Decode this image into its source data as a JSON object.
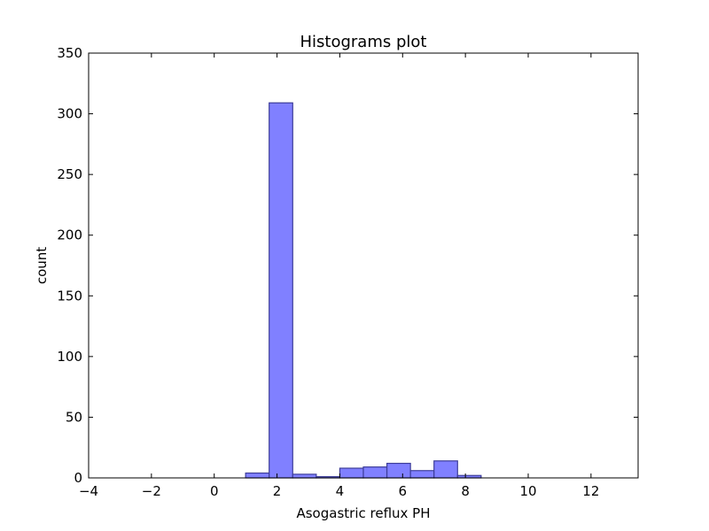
{
  "chart_data": {
    "type": "bar",
    "title": "Histograms plot",
    "xlabel": "Asogastric reflux PH",
    "ylabel": "count",
    "xlim": [
      -4,
      13.5
    ],
    "ylim": [
      0,
      350
    ],
    "grid": false,
    "bar_color": "#8080ff",
    "bar_edge_color": "#3d3d99",
    "x_ticks": [
      -4,
      -2,
      0,
      2,
      4,
      6,
      8,
      10,
      12
    ],
    "x_tick_labels": [
      "−4",
      "−2",
      "0",
      "2",
      "4",
      "6",
      "8",
      "10",
      "12"
    ],
    "y_ticks": [
      0,
      50,
      100,
      150,
      200,
      250,
      300,
      350
    ],
    "y_tick_labels": [
      "0",
      "50",
      "100",
      "150",
      "200",
      "250",
      "300",
      "350"
    ],
    "bins": [
      {
        "x0": 1.0,
        "x1": 1.75,
        "count": 4
      },
      {
        "x0": 1.75,
        "x1": 2.5,
        "count": 309
      },
      {
        "x0": 2.5,
        "x1": 3.25,
        "count": 3
      },
      {
        "x0": 3.25,
        "x1": 4.0,
        "count": 1
      },
      {
        "x0": 4.0,
        "x1": 4.75,
        "count": 8
      },
      {
        "x0": 4.75,
        "x1": 5.5,
        "count": 9
      },
      {
        "x0": 5.5,
        "x1": 6.25,
        "count": 12
      },
      {
        "x0": 6.25,
        "x1": 7.0,
        "count": 6
      },
      {
        "x0": 7.0,
        "x1": 7.75,
        "count": 14
      },
      {
        "x0": 7.75,
        "x1": 8.5,
        "count": 2
      }
    ]
  }
}
